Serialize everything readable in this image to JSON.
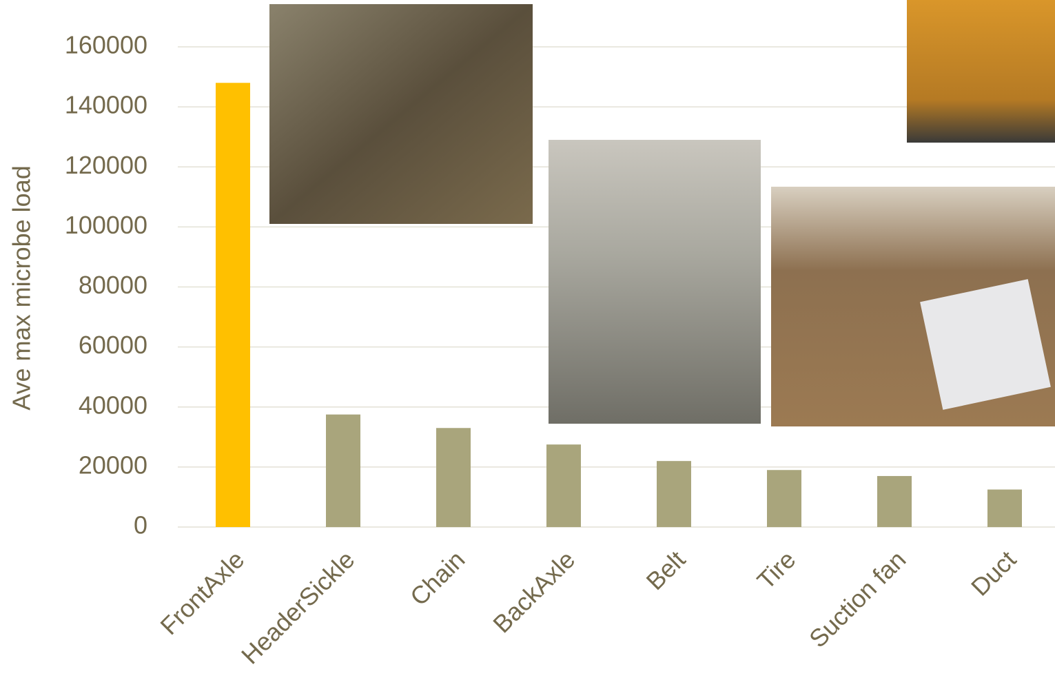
{
  "chart_data": {
    "type": "bar",
    "y_label": "Ave max microbe load",
    "categories": [
      "FrontAxle",
      "HeaderSickle",
      "Chain",
      "BackAxle",
      "Belt",
      "Tire",
      "Suction fan",
      "Duct"
    ],
    "values": [
      148000,
      37500,
      33000,
      27500,
      22000,
      19000,
      17000,
      12500
    ],
    "colors": [
      "#ffc000",
      "#a9a57c",
      "#a9a57c",
      "#a9a57c",
      "#a9a57c",
      "#a9a57c",
      "#a9a57c",
      "#a9a57c"
    ],
    "ylim": [
      0,
      160000
    ],
    "yticks": [
      0,
      20000,
      40000,
      60000,
      80000,
      100000,
      120000,
      140000,
      160000
    ],
    "grid": true
  }
}
